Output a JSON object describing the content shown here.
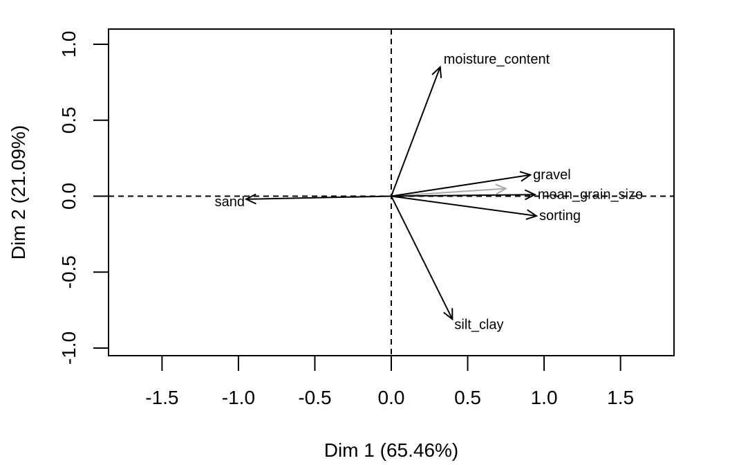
{
  "chart_data": {
    "type": "vector",
    "xlabel": "Dim 1 (65.46%)",
    "ylabel": "Dim 2 (21.09%)",
    "xlim": [
      -1.85,
      1.85
    ],
    "ylim": [
      -1.05,
      1.1
    ],
    "xticks": [
      -1.5,
      -1.0,
      -0.5,
      0.0,
      0.5,
      1.0,
      1.5
    ],
    "xtick_labels": [
      "-1.5",
      "-1.0",
      "-0.5",
      "0.0",
      "0.5",
      "1.0",
      "1.5"
    ],
    "yticks": [
      -1.0,
      -0.5,
      0.0,
      0.5,
      1.0
    ],
    "ytick_labels": [
      "-1.0",
      "-0.5",
      "0.0",
      "0.5",
      "1.0"
    ],
    "grid": false,
    "reference_lines": [
      {
        "axis": "x",
        "value": 0,
        "style": "dashed"
      },
      {
        "axis": "y",
        "value": 0,
        "style": "dashed"
      }
    ],
    "vectors": [
      {
        "name": "moisture_content",
        "x": 0.32,
        "y": 0.85,
        "color": "#000000"
      },
      {
        "name": "gravel",
        "x": 0.91,
        "y": 0.14,
        "color": "#000000"
      },
      {
        "name": "mean_grain_size",
        "x": 0.94,
        "y": 0.01,
        "color": "#000000"
      },
      {
        "name": "sorting",
        "x": 0.95,
        "y": -0.13,
        "color": "#000000"
      },
      {
        "name": "silt_clay",
        "x": 0.4,
        "y": -0.81,
        "color": "#000000"
      },
      {
        "name": "sand",
        "x": -0.95,
        "y": -0.02,
        "color": "#000000"
      }
    ],
    "supplementary_vectors": [
      {
        "name": "",
        "x": 0.75,
        "y": 0.05,
        "color": "#aaaaaa"
      }
    ]
  }
}
